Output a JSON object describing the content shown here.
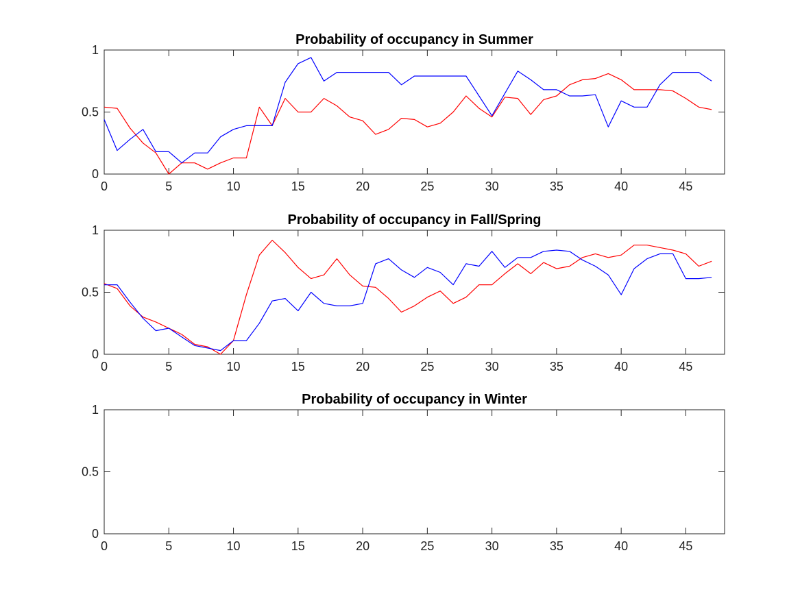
{
  "colors": {
    "red": "#ff0000",
    "blue": "#0000ff"
  },
  "chart_data": [
    {
      "type": "line",
      "title": "Probability of occupancy in Summer",
      "xlim": [
        0,
        48
      ],
      "ylim": [
        0,
        1
      ],
      "xticks": [
        0,
        5,
        10,
        15,
        20,
        25,
        30,
        35,
        40,
        45
      ],
      "yticks": [
        0,
        0.5,
        1
      ],
      "xtick_labels": [
        "0",
        "5",
        "10",
        "15",
        "20",
        "25",
        "30",
        "35",
        "40",
        "45"
      ],
      "ytick_labels": [
        "0",
        "0.5",
        "1"
      ],
      "series": [
        {
          "color": "#ff0000",
          "x": [
            0,
            1,
            2,
            3,
            4,
            5,
            6,
            7,
            8,
            9,
            10,
            11,
            12,
            13,
            14,
            15,
            16,
            17,
            18,
            19,
            20,
            21,
            22,
            23,
            24,
            25,
            26,
            27,
            28,
            29,
            30,
            31,
            32,
            33,
            34,
            35,
            36,
            37,
            38,
            39,
            40,
            41,
            42,
            43,
            44,
            45,
            46,
            47
          ],
          "values": [
            0.54,
            0.53,
            0.37,
            0.25,
            0.17,
            0.0,
            0.09,
            0.09,
            0.04,
            0.09,
            0.13,
            0.13,
            0.54,
            0.39,
            0.61,
            0.5,
            0.5,
            0.61,
            0.55,
            0.46,
            0.43,
            0.32,
            0.36,
            0.45,
            0.44,
            0.38,
            0.41,
            0.5,
            0.63,
            0.53,
            0.46,
            0.62,
            0.61,
            0.48,
            0.6,
            0.63,
            0.72,
            0.76,
            0.77,
            0.81,
            0.76,
            0.68,
            0.68,
            0.68,
            0.67,
            0.61,
            0.54,
            0.52
          ]
        },
        {
          "color": "#0000ff",
          "x": [
            0,
            1,
            2,
            3,
            4,
            5,
            6,
            7,
            8,
            9,
            10,
            11,
            12,
            13,
            14,
            15,
            16,
            17,
            18,
            19,
            20,
            21,
            22,
            23,
            24,
            25,
            26,
            27,
            28,
            29,
            30,
            31,
            32,
            33,
            34,
            35,
            36,
            37,
            38,
            39,
            40,
            41,
            42,
            43,
            44,
            45,
            46,
            47
          ],
          "values": [
            0.44,
            0.19,
            0.28,
            0.36,
            0.18,
            0.18,
            0.09,
            0.17,
            0.17,
            0.3,
            0.36,
            0.39,
            0.39,
            0.39,
            0.74,
            0.89,
            0.94,
            0.75,
            0.82,
            0.82,
            0.82,
            0.82,
            0.82,
            0.72,
            0.79,
            0.79,
            0.79,
            0.79,
            0.79,
            0.63,
            0.47,
            0.65,
            0.83,
            0.76,
            0.68,
            0.68,
            0.63,
            0.63,
            0.64,
            0.38,
            0.59,
            0.54,
            0.54,
            0.72,
            0.82,
            0.82,
            0.82,
            0.75
          ]
        }
      ]
    },
    {
      "type": "line",
      "title": "Probability of occupancy in Fall/Spring",
      "xlim": [
        0,
        48
      ],
      "ylim": [
        0,
        1
      ],
      "xticks": [
        0,
        5,
        10,
        15,
        20,
        25,
        30,
        35,
        40,
        45
      ],
      "yticks": [
        0,
        0.5,
        1
      ],
      "xtick_labels": [
        "0",
        "5",
        "10",
        "15",
        "20",
        "25",
        "30",
        "35",
        "40",
        "45"
      ],
      "ytick_labels": [
        "0",
        "0.5",
        "1"
      ],
      "series": [
        {
          "color": "#ff0000",
          "x": [
            0,
            1,
            2,
            3,
            4,
            5,
            6,
            7,
            8,
            9,
            10,
            11,
            12,
            13,
            14,
            15,
            16,
            17,
            18,
            19,
            20,
            21,
            22,
            23,
            24,
            25,
            26,
            27,
            28,
            29,
            30,
            31,
            32,
            33,
            34,
            35,
            36,
            37,
            38,
            39,
            40,
            41,
            42,
            43,
            44,
            45,
            46,
            47
          ],
          "values": [
            0.57,
            0.53,
            0.39,
            0.3,
            0.26,
            0.21,
            0.16,
            0.08,
            0.06,
            0.0,
            0.11,
            0.48,
            0.8,
            0.92,
            0.82,
            0.7,
            0.61,
            0.64,
            0.77,
            0.64,
            0.55,
            0.54,
            0.45,
            0.34,
            0.39,
            0.46,
            0.51,
            0.41,
            0.46,
            0.56,
            0.56,
            0.65,
            0.73,
            0.65,
            0.74,
            0.69,
            0.71,
            0.78,
            0.81,
            0.78,
            0.8,
            0.88,
            0.88,
            0.86,
            0.84,
            0.81,
            0.71,
            0.75
          ]
        },
        {
          "color": "#0000ff",
          "x": [
            0,
            1,
            2,
            3,
            4,
            5,
            6,
            7,
            8,
            9,
            10,
            11,
            12,
            13,
            14,
            15,
            16,
            17,
            18,
            19,
            20,
            21,
            22,
            23,
            24,
            25,
            26,
            27,
            28,
            29,
            30,
            31,
            32,
            33,
            34,
            35,
            36,
            37,
            38,
            39,
            40,
            41,
            42,
            43,
            44,
            45,
            46,
            47
          ],
          "values": [
            0.56,
            0.56,
            0.42,
            0.29,
            0.19,
            0.21,
            0.14,
            0.07,
            0.05,
            0.03,
            0.11,
            0.11,
            0.25,
            0.43,
            0.45,
            0.35,
            0.5,
            0.41,
            0.39,
            0.39,
            0.41,
            0.73,
            0.77,
            0.68,
            0.62,
            0.7,
            0.66,
            0.56,
            0.73,
            0.71,
            0.83,
            0.7,
            0.78,
            0.78,
            0.83,
            0.84,
            0.83,
            0.76,
            0.71,
            0.64,
            0.48,
            0.69,
            0.77,
            0.81,
            0.81,
            0.61,
            0.61,
            0.62
          ]
        }
      ]
    },
    {
      "type": "line",
      "title": "Probability of occupancy in Winter",
      "xlim": [
        0,
        48
      ],
      "ylim": [
        0,
        1
      ],
      "xticks": [
        0,
        5,
        10,
        15,
        20,
        25,
        30,
        35,
        40,
        45
      ],
      "yticks": [
        0,
        0.5,
        1
      ],
      "xtick_labels": [
        "0",
        "5",
        "10",
        "15",
        "20",
        "25",
        "30",
        "35",
        "40",
        "45"
      ],
      "ytick_labels": [
        "0",
        "0.5",
        "1"
      ],
      "series": []
    }
  ]
}
